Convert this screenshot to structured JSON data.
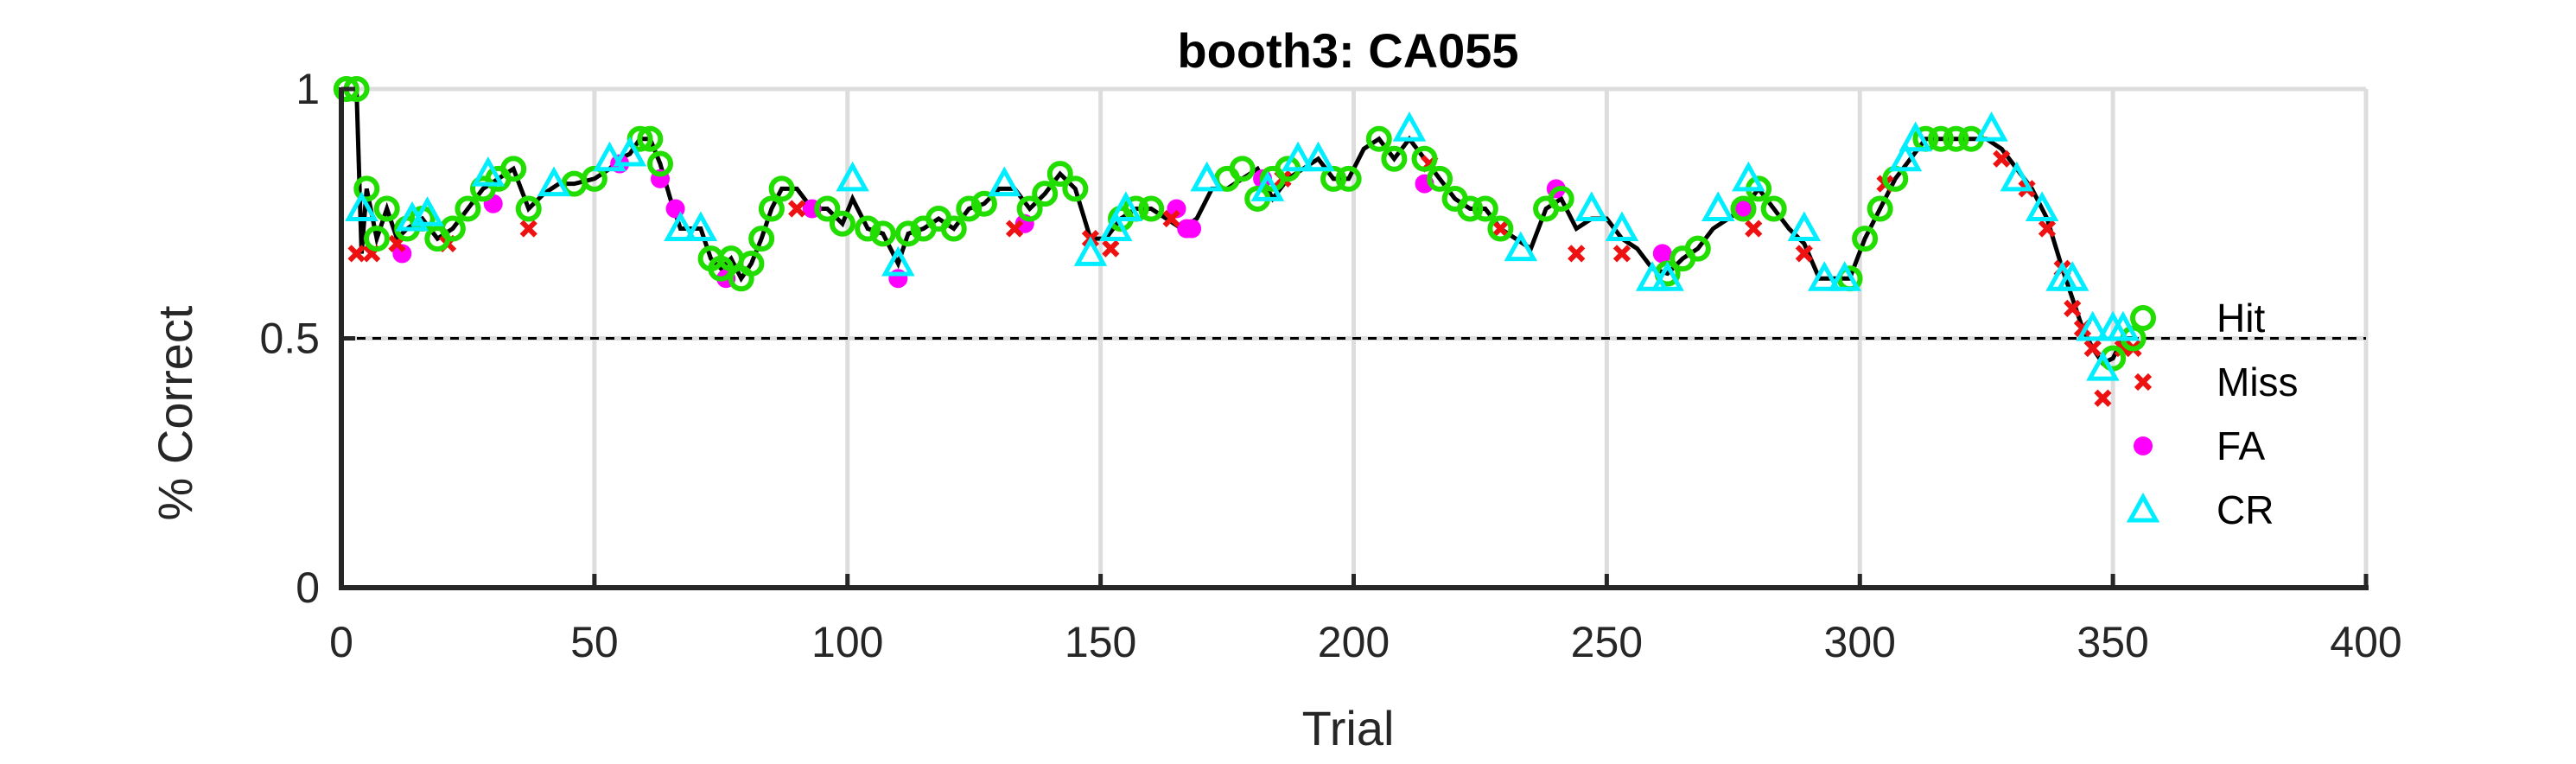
{
  "chart_data": {
    "type": "line",
    "title": "booth3: CA055",
    "xlabel": "Trial",
    "ylabel": "% Correct",
    "xlim": [
      0,
      400
    ],
    "ylim": [
      0,
      1
    ],
    "xticks": [
      0,
      50,
      100,
      150,
      200,
      250,
      300,
      350,
      400
    ],
    "xtick_labels": [
      "0",
      "50",
      "100",
      "150",
      "200",
      "250",
      "300",
      "350",
      "400"
    ],
    "yticks": [
      0,
      0.5,
      1
    ],
    "ytick_labels": [
      "0",
      "0.5",
      "1"
    ],
    "grid": true,
    "reference_line": 0.5,
    "legend_position": "right",
    "colors": {
      "line": "#000000",
      "Hit": "#22dd00",
      "Miss": "#ee1111",
      "FA": "#ff00ff",
      "CR": "#00eeff",
      "grid": "#dddddd"
    },
    "legend": [
      {
        "name": "Hit",
        "marker": "circle"
      },
      {
        "name": "Miss",
        "marker": "x"
      },
      {
        "name": "FA",
        "marker": "dot"
      },
      {
        "name": "CR",
        "marker": "triangle"
      }
    ],
    "line": {
      "x": [
        1,
        3,
        4,
        5,
        7,
        9,
        11,
        13,
        16,
        19,
        22,
        25,
        28,
        31,
        34,
        37,
        40,
        43,
        46,
        50,
        53,
        55,
        57,
        59,
        61,
        63,
        65,
        67,
        69,
        71,
        73,
        75,
        77,
        79,
        81,
        83,
        85,
        87,
        90,
        93,
        96,
        99,
        101,
        104,
        107,
        110,
        112,
        115,
        118,
        121,
        124,
        127,
        130,
        133,
        136,
        139,
        142,
        145,
        148,
        151,
        154,
        157,
        160,
        163,
        166,
        169,
        172,
        175,
        178,
        181,
        184,
        187,
        190,
        193,
        196,
        199,
        202,
        205,
        208,
        211,
        214,
        217,
        220,
        223,
        226,
        229,
        232,
        235,
        238,
        241,
        244,
        247,
        250,
        253,
        256,
        259,
        262,
        265,
        268,
        271,
        274,
        277,
        280,
        283,
        286,
        289,
        292,
        295,
        298,
        301,
        304,
        307,
        310,
        313,
        316,
        319,
        322,
        325,
        328,
        331,
        334,
        337,
        340,
        342,
        344,
        346,
        348,
        350,
        352,
        354
      ],
      "y": [
        1.0,
        1.0,
        0.67,
        0.8,
        0.7,
        0.76,
        0.7,
        0.72,
        0.74,
        0.7,
        0.72,
        0.76,
        0.8,
        0.82,
        0.84,
        0.76,
        0.79,
        0.81,
        0.81,
        0.82,
        0.84,
        0.86,
        0.87,
        0.9,
        0.9,
        0.85,
        0.78,
        0.72,
        0.72,
        0.72,
        0.66,
        0.64,
        0.66,
        0.62,
        0.65,
        0.7,
        0.76,
        0.8,
        0.8,
        0.76,
        0.76,
        0.73,
        0.78,
        0.72,
        0.71,
        0.65,
        0.71,
        0.72,
        0.74,
        0.72,
        0.76,
        0.77,
        0.8,
        0.8,
        0.76,
        0.79,
        0.83,
        0.8,
        0.7,
        0.7,
        0.74,
        0.76,
        0.76,
        0.74,
        0.72,
        0.74,
        0.8,
        0.8,
        0.82,
        0.84,
        0.78,
        0.82,
        0.84,
        0.86,
        0.82,
        0.82,
        0.88,
        0.9,
        0.86,
        0.9,
        0.86,
        0.82,
        0.78,
        0.76,
        0.76,
        0.72,
        0.7,
        0.68,
        0.76,
        0.78,
        0.72,
        0.74,
        0.74,
        0.7,
        0.68,
        0.64,
        0.63,
        0.66,
        0.68,
        0.72,
        0.74,
        0.76,
        0.8,
        0.76,
        0.72,
        0.69,
        0.62,
        0.62,
        0.62,
        0.7,
        0.76,
        0.82,
        0.86,
        0.9,
        0.9,
        0.9,
        0.9,
        0.9,
        0.88,
        0.84,
        0.8,
        0.74,
        0.64,
        0.58,
        0.52,
        0.48,
        0.45,
        0.46,
        0.5,
        0.5
      ]
    },
    "series": [
      {
        "name": "Hit",
        "x": [
          1,
          3,
          5,
          7,
          9,
          13,
          16,
          19,
          22,
          25,
          28,
          31,
          34,
          37,
          46,
          50,
          59,
          61,
          63,
          73,
          75,
          77,
          79,
          81,
          83,
          85,
          87,
          96,
          99,
          104,
          107,
          112,
          115,
          118,
          121,
          124,
          127,
          136,
          139,
          142,
          145,
          154,
          157,
          160,
          175,
          178,
          181,
          184,
          187,
          196,
          199,
          205,
          208,
          214,
          217,
          220,
          223,
          226,
          229,
          238,
          241,
          262,
          265,
          268,
          277,
          280,
          283,
          298,
          301,
          304,
          307,
          313,
          316,
          319,
          322,
          350,
          354
        ],
        "y": [
          1.0,
          1.0,
          0.8,
          0.7,
          0.76,
          0.72,
          0.74,
          0.7,
          0.72,
          0.76,
          0.8,
          0.82,
          0.84,
          0.76,
          0.81,
          0.82,
          0.9,
          0.9,
          0.85,
          0.66,
          0.64,
          0.66,
          0.62,
          0.65,
          0.7,
          0.76,
          0.8,
          0.76,
          0.73,
          0.72,
          0.71,
          0.71,
          0.72,
          0.74,
          0.72,
          0.76,
          0.77,
          0.76,
          0.79,
          0.83,
          0.8,
          0.74,
          0.76,
          0.76,
          0.82,
          0.84,
          0.78,
          0.82,
          0.84,
          0.82,
          0.82,
          0.9,
          0.86,
          0.86,
          0.82,
          0.78,
          0.76,
          0.76,
          0.72,
          0.76,
          0.78,
          0.63,
          0.66,
          0.68,
          0.76,
          0.8,
          0.76,
          0.62,
          0.7,
          0.76,
          0.82,
          0.9,
          0.9,
          0.9,
          0.9,
          0.46,
          0.5
        ]
      },
      {
        "name": "Miss",
        "x": [
          3,
          6,
          11,
          21,
          37,
          90,
          133,
          148,
          152,
          164,
          186,
          215,
          229,
          244,
          253,
          279,
          289,
          305,
          328,
          333,
          337,
          340,
          342,
          344,
          346,
          348,
          352,
          354
        ],
        "y": [
          0.67,
          0.67,
          0.69,
          0.69,
          0.72,
          0.76,
          0.72,
          0.7,
          0.68,
          0.74,
          0.82,
          0.85,
          0.72,
          0.67,
          0.67,
          0.72,
          0.67,
          0.81,
          0.86,
          0.8,
          0.72,
          0.64,
          0.56,
          0.52,
          0.48,
          0.38,
          0.48,
          0.48
        ]
      },
      {
        "name": "FA",
        "x": [
          12,
          30,
          55,
          63,
          66,
          76,
          93,
          110,
          135,
          165,
          167,
          168,
          182,
          214,
          240,
          261,
          277
        ],
        "y": [
          0.67,
          0.77,
          0.85,
          0.82,
          0.76,
          0.62,
          0.76,
          0.62,
          0.73,
          0.76,
          0.72,
          0.72,
          0.82,
          0.81,
          0.8,
          0.67,
          0.76
        ],
        "note": ""
      },
      {
        "name": "CR",
        "x": [
          4,
          14,
          17,
          29,
          42,
          53,
          57,
          67,
          71,
          101,
          110,
          131,
          148,
          153,
          155,
          171,
          183,
          189,
          193,
          211,
          233,
          247,
          253,
          259,
          262,
          272,
          278,
          289,
          293,
          297,
          309,
          311,
          326,
          331,
          336,
          340,
          342,
          346,
          348,
          350,
          352
        ],
        "y": [
          0.76,
          0.74,
          0.75,
          0.83,
          0.81,
          0.86,
          0.87,
          0.72,
          0.72,
          0.82,
          0.65,
          0.81,
          0.67,
          0.72,
          0.76,
          0.82,
          0.8,
          0.86,
          0.86,
          0.92,
          0.68,
          0.76,
          0.72,
          0.62,
          0.62,
          0.76,
          0.82,
          0.72,
          0.62,
          0.62,
          0.86,
          0.9,
          0.92,
          0.82,
          0.76,
          0.62,
          0.62,
          0.52,
          0.44,
          0.52,
          0.52
        ]
      }
    ]
  }
}
